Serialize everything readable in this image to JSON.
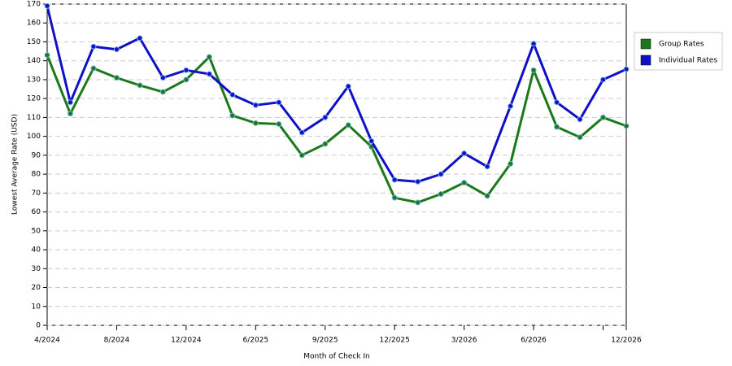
{
  "chart_data": {
    "type": "line",
    "x_label": "Month of Check In",
    "y_label": "Lowest Average Rate (USD)",
    "categories": [
      "4/2024",
      null,
      null,
      "8/2024",
      null,
      null,
      "12/2024",
      null,
      null,
      "6/2025",
      null,
      null,
      "9/2025",
      null,
      null,
      "12/2025",
      null,
      null,
      "3/2026",
      null,
      null,
      "6/2026",
      null,
      null,
      null,
      "12/2026"
    ],
    "series": [
      {
        "name": "Group Rates",
        "color": "#1a7a1a",
        "values": [
          143,
          112,
          136,
          131,
          127,
          123.5,
          130,
          142,
          111,
          107,
          106.5,
          90,
          96,
          106,
          94.5,
          67.5,
          65,
          69.5,
          75.5,
          68.5,
          85.5,
          135,
          105,
          99.5,
          110,
          105.5
        ]
      },
      {
        "name": "Individual Rates",
        "color": "#1010c8",
        "values": [
          169,
          118,
          147.5,
          146,
          152,
          131,
          135,
          133,
          122,
          116.5,
          118,
          102,
          110,
          126.5,
          97.5,
          77,
          76,
          80,
          91,
          84,
          116,
          149,
          118,
          109,
          130,
          135.5
        ]
      }
    ],
    "ylim": [
      0,
      170
    ],
    "yticks": [
      0,
      10,
      20,
      30,
      40,
      50,
      60,
      70,
      80,
      90,
      100,
      110,
      120,
      130,
      140,
      150,
      160,
      170
    ],
    "grid": true,
    "legend_position": "right"
  }
}
